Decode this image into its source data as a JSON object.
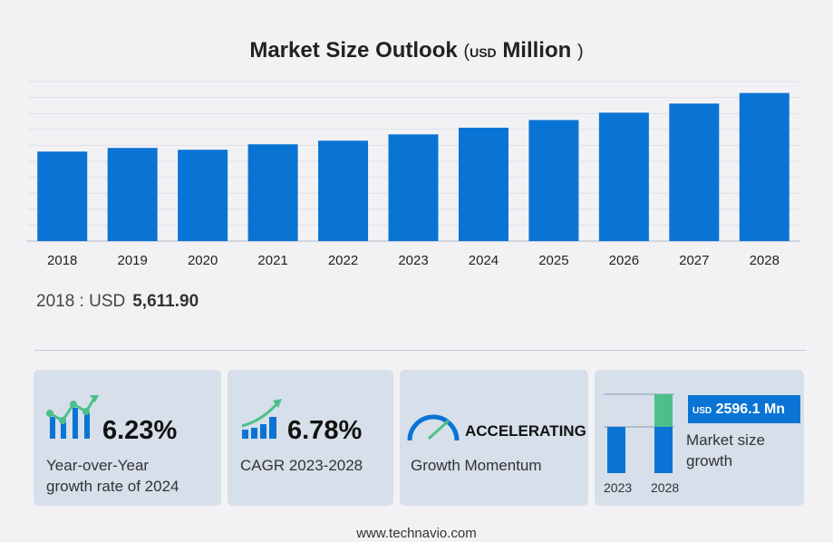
{
  "chart_data": {
    "type": "bar",
    "title": "Market Size Outlook",
    "unit_prefix": "USD",
    "unit": "Million",
    "categories": [
      "2018",
      "2019",
      "2020",
      "2021",
      "2022",
      "2023",
      "2024",
      "2025",
      "2026",
      "2027",
      "2028"
    ],
    "values": [
      5611.9,
      5840,
      5727,
      6067,
      6294,
      6690,
      7107,
      7590,
      8050,
      8620,
      9286
    ],
    "ylim": [
      0,
      10000
    ],
    "grid": true,
    "color": "#0a74d4"
  },
  "base": {
    "label": "2018 : USD",
    "value": "5,611.90"
  },
  "cards": {
    "yoy": {
      "value": "6.23%",
      "line1": "Year-over-Year",
      "line2": "growth rate of 2024"
    },
    "cagr": {
      "value": "6.78%",
      "label": "CAGR 2023-2028"
    },
    "momentum": {
      "value": "ACCELERATING",
      "label": "Growth Momentum"
    },
    "growth": {
      "usd": "USD",
      "value": "2596.1 Mn",
      "line1": "Market size",
      "line2": "growth",
      "year1": "2023",
      "year2": "2028"
    }
  },
  "footer": "www.technavio.com",
  "colors": {
    "blue": "#0a74d4",
    "green": "#4dbf8a"
  }
}
